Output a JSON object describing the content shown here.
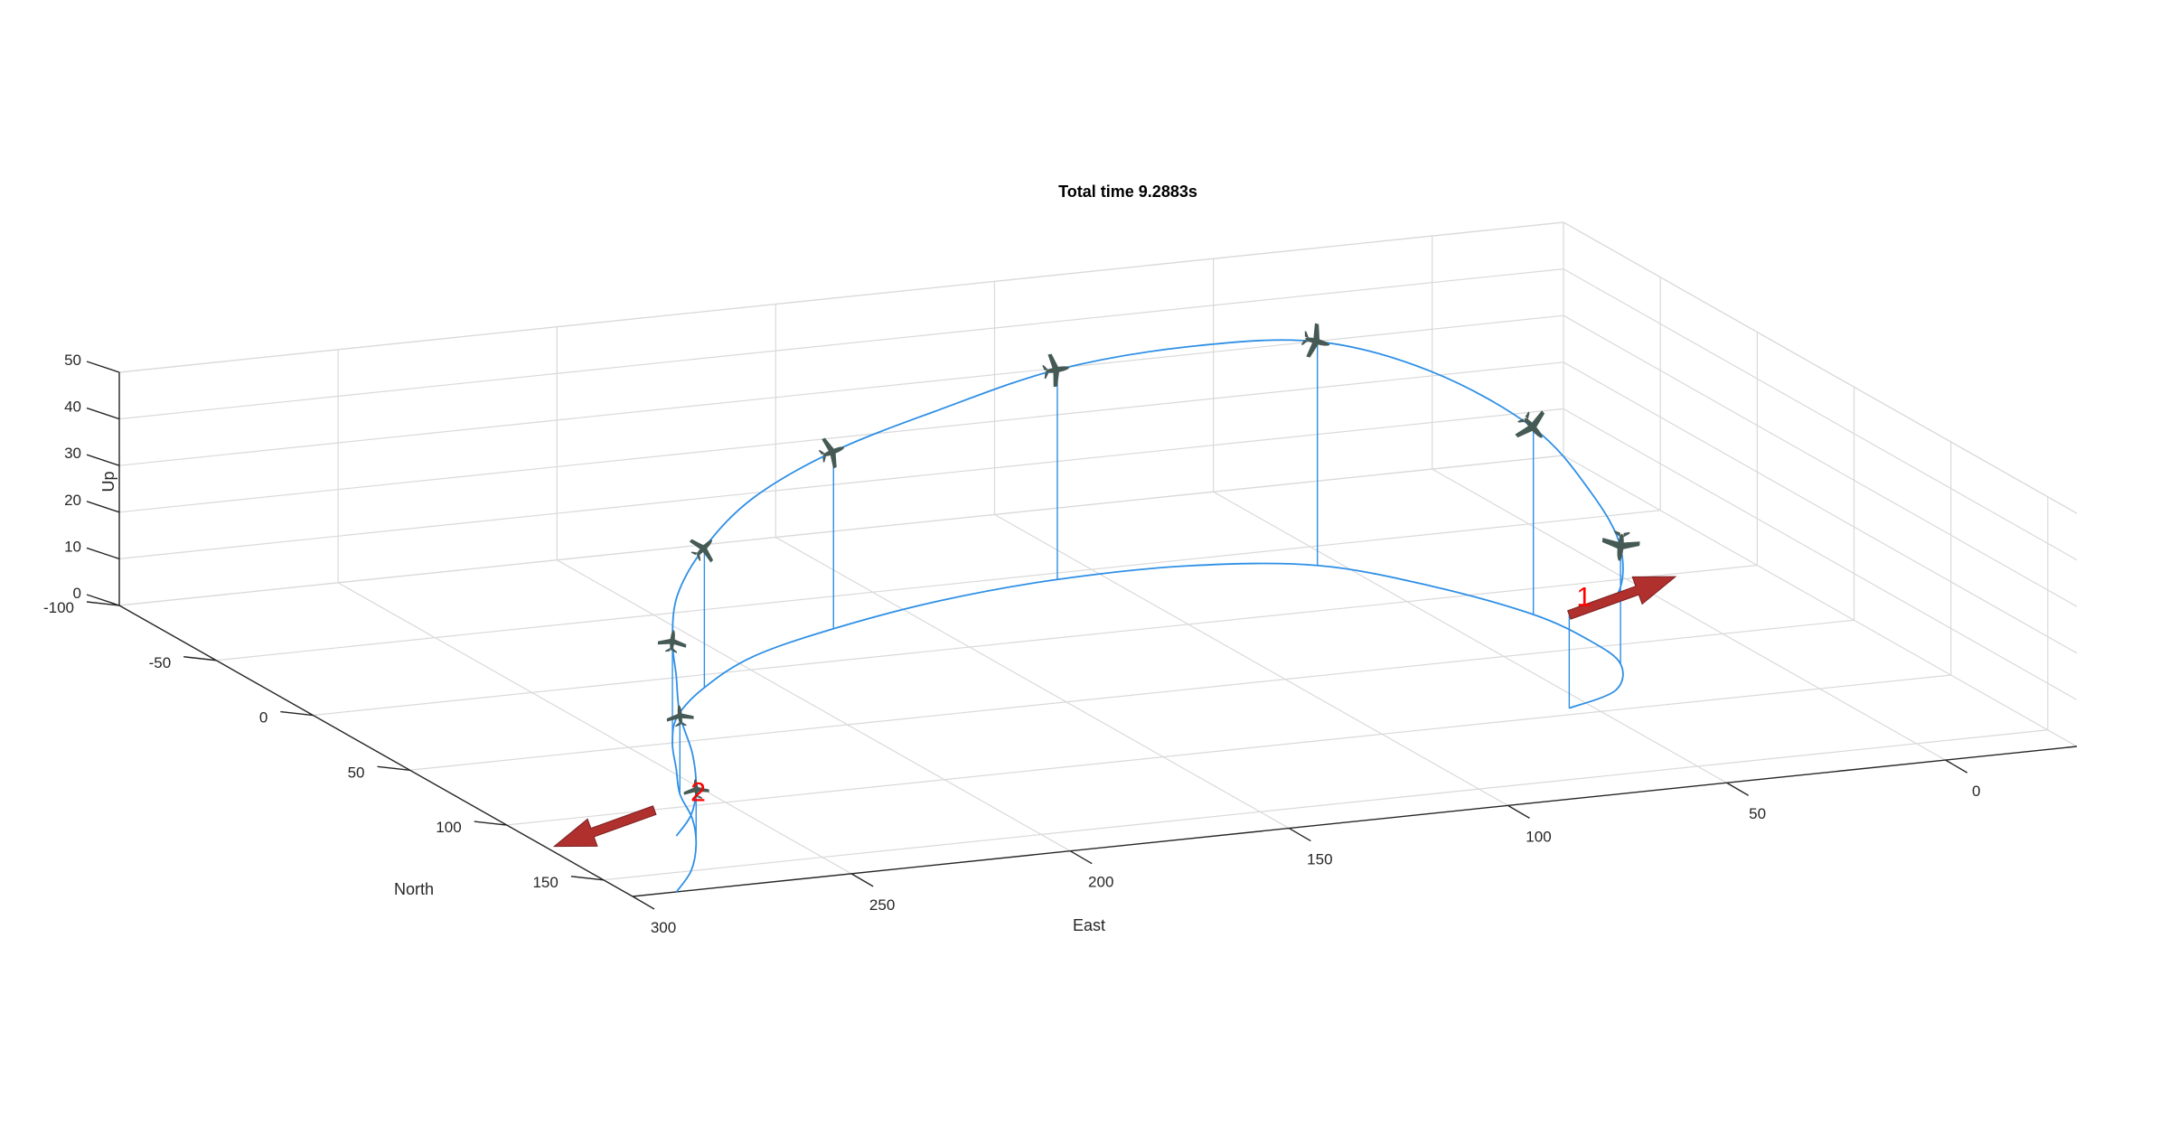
{
  "chart_data": {
    "type": "line",
    "title": "Total time 9.2883s",
    "xlabel": "East",
    "ylabel": "North",
    "zlabel": "Up",
    "xlim": [
      -30,
      300
    ],
    "ylim": [
      -100,
      165
    ],
    "zlim": [
      0,
      50
    ],
    "grid": true,
    "x_ticks": [
      "300",
      "250",
      "200",
      "150",
      "100",
      "50",
      "0"
    ],
    "y_ticks": [
      "-100",
      "-50",
      "0",
      "50",
      "100",
      "150"
    ],
    "z_ticks": [
      "0",
      "10",
      "20",
      "30",
      "40",
      "50"
    ],
    "trajectory": {
      "east": [
        290,
        280,
        270,
        262,
        256,
        248,
        240,
        230,
        215,
        195,
        170,
        140,
        110,
        80,
        55,
        40,
        30,
        28,
        30,
        40,
        55
      ],
      "north": [
        165,
        150,
        130,
        110,
        90,
        70,
        50,
        30,
        10,
        -10,
        -25,
        -38,
        -45,
        -45,
        -35,
        -10,
        20,
        45,
        65,
        85,
        95
      ],
      "up": [
        12,
        12,
        12,
        14,
        17,
        20,
        22,
        26,
        30,
        34,
        38,
        41,
        45,
        47,
        48,
        46,
        40,
        32,
        25,
        20,
        20
      ]
    },
    "drop_lines": true,
    "waypoints": [
      {
        "label": "1",
        "east": 55,
        "north": 95,
        "up": 20,
        "color": "#ff0000"
      },
      {
        "label": "2",
        "east": 295,
        "north": 165,
        "up": 18,
        "color": "#ff0000"
      }
    ],
    "colors": {
      "trajectory": "#2e8fe6",
      "grid": "#d9d9d9",
      "axes": "#262626",
      "arrow": "#b0302e",
      "aircraft": "#465a55"
    }
  }
}
